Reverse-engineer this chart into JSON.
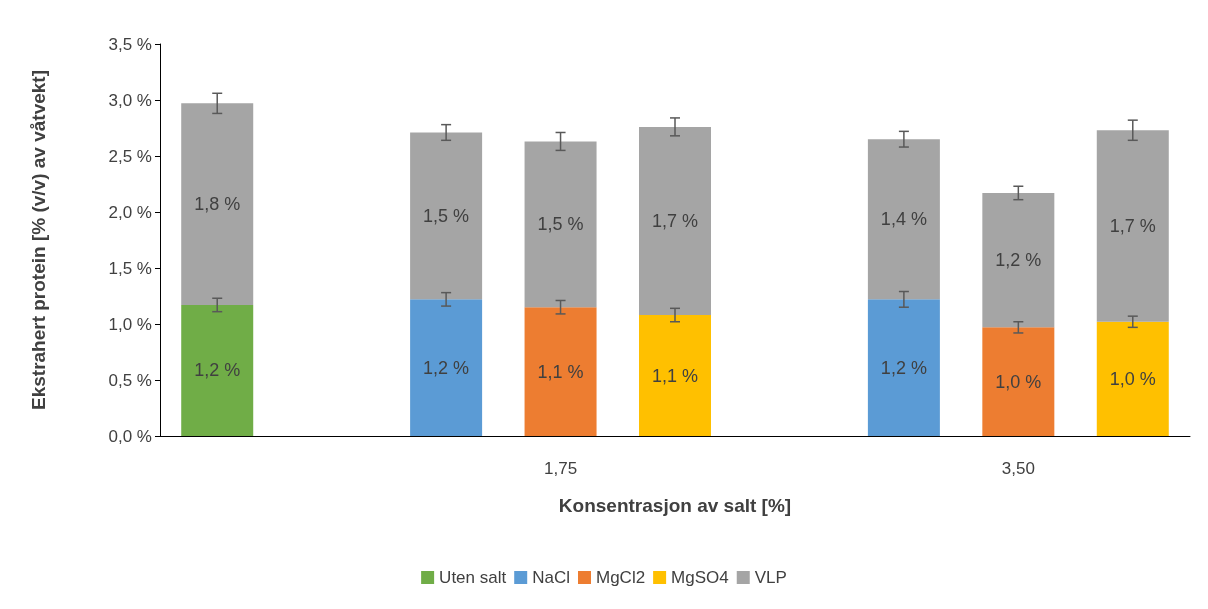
{
  "chart_data": {
    "type": "bar",
    "stacked": true,
    "xlabel": "Konsentrasjon av salt [%]",
    "ylabel": "Ekstrahert protein [% (v/v) av våtvekt]",
    "categories": [
      null,
      null,
      null,
      "1,75",
      null,
      null,
      null,
      "3,50",
      null
    ],
    "series": [
      {
        "name": "Uten salt",
        "color": "#70ad47",
        "values": [
          1.17,
          null,
          null,
          null,
          null,
          null,
          null,
          null,
          null
        ],
        "errors": [
          0.06,
          null,
          null,
          null,
          null,
          null,
          null,
          null,
          null
        ],
        "value_labels": [
          "1,2 %",
          null,
          null,
          null,
          null,
          null,
          null,
          null,
          null
        ]
      },
      {
        "name": "NaCl",
        "color": "#5b9bd5",
        "values": [
          null,
          null,
          1.22,
          null,
          null,
          null,
          1.22,
          null,
          null
        ],
        "errors": [
          null,
          null,
          0.06,
          null,
          null,
          null,
          0.07,
          null,
          null
        ],
        "value_labels": [
          null,
          null,
          "1,2 %",
          null,
          null,
          null,
          "1,2 %",
          null,
          null
        ]
      },
      {
        "name": "MgCl2",
        "color": "#ed7d31",
        "values": [
          null,
          null,
          null,
          1.15,
          null,
          null,
          null,
          0.97,
          null
        ],
        "errors": [
          null,
          null,
          null,
          0.06,
          null,
          null,
          null,
          0.05,
          null
        ],
        "value_labels": [
          null,
          null,
          null,
          "1,1 %",
          null,
          null,
          null,
          "1,0 %",
          null
        ]
      },
      {
        "name": "MgSO4",
        "color": "#ffc000",
        "values": [
          null,
          null,
          null,
          null,
          1.08,
          null,
          null,
          null,
          1.02
        ],
        "errors": [
          null,
          null,
          null,
          null,
          0.06,
          null,
          null,
          null,
          0.05
        ],
        "value_labels": [
          null,
          null,
          null,
          null,
          "1,1 %",
          null,
          null,
          null,
          "1,0 %"
        ]
      },
      {
        "name": "VLP",
        "color": "#a5a5a5",
        "values": [
          1.8,
          null,
          1.49,
          1.48,
          1.68,
          null,
          1.43,
          1.2,
          1.71
        ],
        "errors": [
          0.09,
          null,
          0.07,
          0.08,
          0.08,
          null,
          0.07,
          0.06,
          0.09
        ],
        "value_labels": [
          "1,8 %",
          null,
          "1,5 %",
          "1,5 %",
          "1,7 %",
          null,
          "1,4 %",
          "1,2 %",
          "1,7 %"
        ]
      }
    ],
    "ylim": [
      0,
      3.5
    ],
    "yticks": [
      {
        "value": 0,
        "label": "0,0 %"
      },
      {
        "value": 0.5,
        "label": "0,5 %"
      },
      {
        "value": 1,
        "label": "1,0 %"
      },
      {
        "value": 1.5,
        "label": "1,5 %"
      },
      {
        "value": 2,
        "label": "2,0 %"
      },
      {
        "value": 2.5,
        "label": "2,5 %"
      },
      {
        "value": 3,
        "label": "3,0 %"
      },
      {
        "value": 3.5,
        "label": "3,5 %"
      }
    ],
    "grid": false,
    "legend": "bottom"
  }
}
